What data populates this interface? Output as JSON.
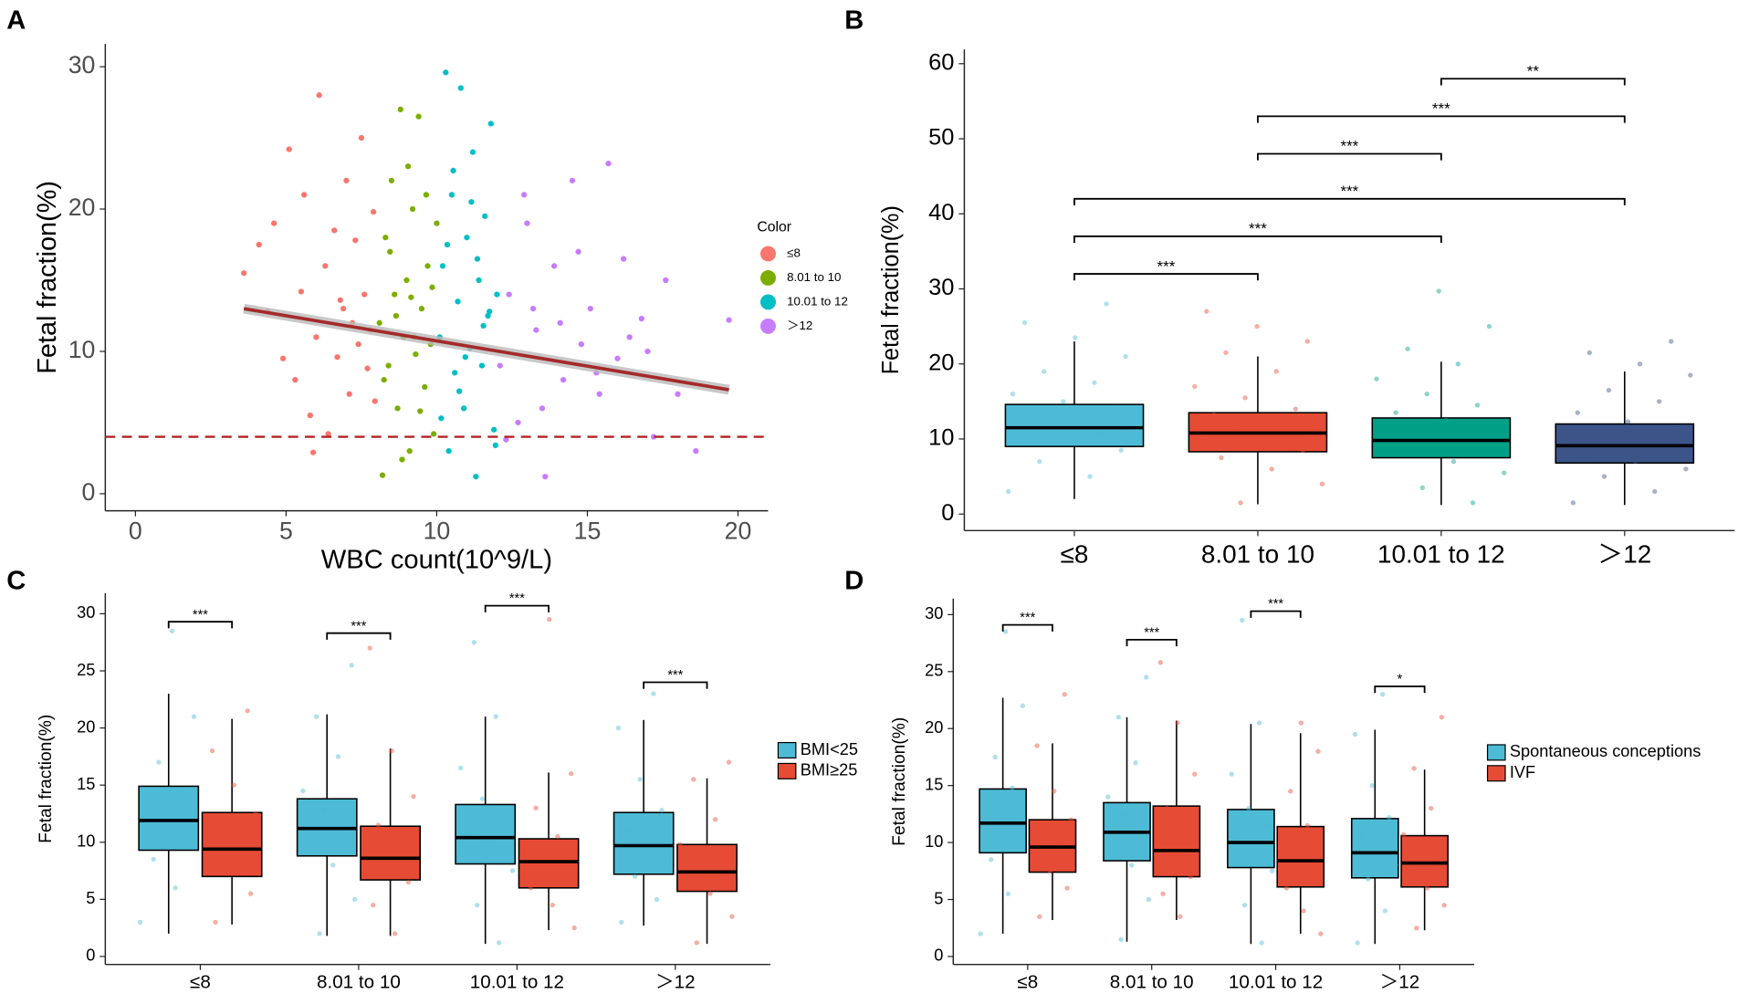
{
  "chart_data": [
    {
      "type": "scatter",
      "panel_label": "A",
      "xlabel": "WBC count(10^9/L)",
      "ylabel": "Fetal fraction(%)",
      "legend_title": "Color",
      "xlim": [
        -1,
        21
      ],
      "xticks": [
        0,
        5,
        10,
        15,
        20
      ],
      "ylim": [
        -1.2,
        31.6
      ],
      "yticks": [
        0,
        10,
        20,
        30
      ],
      "series": [
        {
          "name": "≤8",
          "color": "#F8766D",
          "x": [
            3.6,
            4.1,
            4.4,
            4.6,
            4.9,
            5.1,
            5.3,
            5.5,
            5.6,
            5.8,
            6.0,
            6.1,
            6.3,
            6.4,
            6.6,
            6.7,
            6.9,
            7.0,
            7.1,
            7.2,
            7.3,
            7.4,
            7.5,
            7.6,
            7.7,
            7.8,
            7.9,
            7.95,
            5.9,
            6.8
          ],
          "y": [
            15.5,
            17.5,
            12.8,
            19,
            9.5,
            24.2,
            8,
            14.2,
            21,
            5.5,
            11,
            28,
            16,
            4.2,
            18.5,
            9.6,
            13,
            22,
            7,
            12,
            17.8,
            10.5,
            25,
            14,
            8.8,
            11.5,
            19.8,
            6.5,
            2.9,
            13.6
          ]
        },
        {
          "name": "8.01 to 10",
          "color": "#7CAE00",
          "x": [
            8.1,
            8.2,
            8.3,
            8.4,
            8.5,
            8.6,
            8.7,
            8.8,
            8.9,
            9.0,
            9.1,
            9.2,
            9.3,
            9.4,
            9.5,
            9.6,
            9.7,
            9.8,
            9.9,
            10.0,
            8.25,
            8.65,
            9.05,
            9.45,
            9.85,
            8.45,
            9.25,
            9.65,
            8.85,
            9.15
          ],
          "y": [
            12,
            1.3,
            18,
            9,
            22,
            14,
            6,
            27,
            11,
            15,
            3,
            20,
            9.8,
            26.5,
            13,
            7.5,
            16,
            10.5,
            4.2,
            19,
            8,
            12.5,
            23,
            5.8,
            14.5,
            17,
            11,
            21,
            2.4,
            13.8
          ]
        },
        {
          "name": "10.01 to 12",
          "color": "#00BFC4",
          "x": [
            10.1,
            10.2,
            10.3,
            10.4,
            10.5,
            10.6,
            10.7,
            10.8,
            10.9,
            11.0,
            11.1,
            11.2,
            11.3,
            11.4,
            11.5,
            11.6,
            11.7,
            11.8,
            11.9,
            12.0,
            10.35,
            10.75,
            11.15,
            11.55,
            11.95,
            10.55,
            10.95,
            11.35,
            11.75,
            10.15
          ],
          "y": [
            11,
            16,
            29.6,
            3,
            21,
            8.5,
            13.5,
            28.5,
            6,
            18,
            10.2,
            24,
            1.2,
            15,
            9,
            19.5,
            12.5,
            26,
            4.5,
            14,
            17.5,
            7.2,
            20.5,
            11.8,
            3.4,
            22.7,
            9.6,
            16.5,
            12.8,
            5.3
          ]
        },
        {
          "name": "＞12",
          "color": "#C77CFF",
          "x": [
            12.1,
            12.4,
            12.7,
            13.0,
            13.3,
            13.6,
            13.9,
            14.2,
            14.5,
            14.8,
            15.1,
            15.4,
            15.7,
            16.0,
            16.4,
            16.8,
            17.2,
            17.6,
            18.0,
            18.6,
            19.7,
            12.9,
            13.5,
            14.1,
            14.7,
            15.3,
            16.2,
            17.0,
            12.3,
            13.2
          ],
          "y": [
            9,
            14,
            5,
            19,
            11.5,
            1.2,
            16,
            8,
            22,
            10.5,
            13,
            7,
            23.2,
            9.5,
            11,
            12.3,
            4,
            15,
            7,
            3,
            12.2,
            21,
            6,
            12,
            17,
            8.5,
            16.5,
            10,
            3.8,
            13
          ]
        }
      ],
      "regression": {
        "x": [
          3.6,
          19.7
        ],
        "y": [
          13.0,
          7.3
        ],
        "color": "#A52A2A"
      },
      "hline": {
        "y": 4,
        "color": "#B22222"
      }
    },
    {
      "type": "box",
      "panel_label": "B",
      "ylabel": "Fetal fraction(%)",
      "ylim": [
        -2.2,
        61.9
      ],
      "yticks": [
        0,
        10,
        20,
        30,
        40,
        50,
        60
      ],
      "categories": [
        "≤8",
        "8.01 to 10",
        "10.01 to 12",
        "＞12"
      ],
      "series": [
        {
          "colors": [
            "#4DBBD5",
            "#E64B35",
            "#00A087",
            "#3C5488"
          ],
          "boxes": [
            {
              "low": 2,
              "q1": 9,
              "median": 11.5,
              "q3": 14.6,
              "high": 23,
              "points": [
                3,
                5,
                7,
                8.5,
                9.5,
                10,
                10.8,
                11.5,
                12,
                12.6,
                13.3,
                14,
                15,
                16,
                17.5,
                19,
                21,
                23.5,
                25.5,
                28
              ]
            },
            {
              "low": 1.3,
              "q1": 8.3,
              "median": 10.8,
              "q3": 13.5,
              "high": 21,
              "points": [
                1.5,
                4,
                6,
                7.5,
                8.5,
                9.2,
                10,
                10.6,
                11.2,
                11.8,
                12.5,
                13.2,
                14,
                15.5,
                17,
                19,
                21.5,
                23,
                25,
                27
              ]
            },
            {
              "low": 1.2,
              "q1": 7.5,
              "median": 9.8,
              "q3": 12.8,
              "high": 20.3,
              "points": [
                1.5,
                3.5,
                5.5,
                7,
                8,
                8.8,
                9.5,
                10,
                10.6,
                11.2,
                11.8,
                12.5,
                13.5,
                14.5,
                16,
                18,
                20,
                22,
                25,
                29.7
              ]
            },
            {
              "low": 1.2,
              "q1": 6.8,
              "median": 9.1,
              "q3": 12,
              "high": 19,
              "points": [
                1.5,
                3,
                5,
                6,
                7,
                7.8,
                8.5,
                9,
                9.6,
                10.2,
                10.8,
                11.5,
                12.3,
                13.5,
                15,
                16.5,
                18.5,
                20,
                21.5,
                23
              ]
            }
          ]
        }
      ],
      "comparisons": [
        {
          "from": 0,
          "to": 1,
          "y": 32,
          "label": "***"
        },
        {
          "from": 0,
          "to": 2,
          "y": 37,
          "label": "***"
        },
        {
          "from": 0,
          "to": 3,
          "y": 42,
          "label": "***"
        },
        {
          "from": 1,
          "to": 2,
          "y": 48,
          "label": "***"
        },
        {
          "from": 1,
          "to": 3,
          "y": 53,
          "label": "***"
        },
        {
          "from": 2,
          "to": 3,
          "y": 58,
          "label": "**"
        }
      ]
    },
    {
      "type": "box",
      "panel_label": "C",
      "ylabel": "Fetal fraction(%)",
      "ylim": [
        -0.7,
        31.8
      ],
      "yticks": [
        0,
        5,
        10,
        15,
        20,
        25,
        30
      ],
      "categories": [
        "≤8",
        "8.01 to 10",
        "10.01 to 12",
        "＞12"
      ],
      "series": [
        {
          "name": "BMI<25",
          "color": "#4DBBD5",
          "boxes": [
            {
              "low": 2,
              "q1": 9.3,
              "median": 11.9,
              "q3": 14.9,
              "high": 23,
              "points": [
                3,
                6,
                8.5,
                10.5,
                11.8,
                13,
                14.5,
                17,
                21,
                28.5
              ]
            },
            {
              "low": 1.8,
              "q1": 8.8,
              "median": 11.2,
              "q3": 13.8,
              "high": 21.2,
              "points": [
                2,
                5,
                8,
                10,
                11.5,
                12.8,
                14.5,
                17.5,
                21,
                25.5
              ]
            },
            {
              "low": 1.1,
              "q1": 8.1,
              "median": 10.4,
              "q3": 13.3,
              "high": 21,
              "points": [
                1.2,
                4.5,
                7.5,
                9.5,
                10.6,
                12,
                13.8,
                16.5,
                21,
                27.5
              ]
            },
            {
              "low": 2.7,
              "q1": 7.2,
              "median": 9.7,
              "q3": 12.6,
              "high": 20.7,
              "points": [
                3,
                5,
                7,
                8.6,
                9.8,
                11,
                12.8,
                15.5,
                20,
                23
              ]
            }
          ]
        },
        {
          "name": "BMI≥25",
          "color": "#E64B35",
          "boxes": [
            {
              "low": 2.8,
              "q1": 7,
              "median": 9.4,
              "q3": 12.6,
              "high": 20.8,
              "points": [
                3,
                5.5,
                7.5,
                8.8,
                9.6,
                10.8,
                12.5,
                15,
                18,
                21.5
              ]
            },
            {
              "low": 1.8,
              "q1": 6.7,
              "median": 8.6,
              "q3": 11.4,
              "high": 18.2,
              "points": [
                2,
                4.5,
                6.5,
                7.8,
                8.8,
                9.8,
                11.5,
                14,
                18,
                27
              ]
            },
            {
              "low": 2.3,
              "q1": 6,
              "median": 8.3,
              "q3": 10.3,
              "high": 16.1,
              "points": [
                2.5,
                4.5,
                6,
                7.3,
                8.3,
                9.3,
                10.5,
                13,
                16,
                29.5
              ]
            },
            {
              "low": 1.1,
              "q1": 5.7,
              "median": 7.4,
              "q3": 9.8,
              "high": 15.6,
              "points": [
                1.2,
                3.5,
                5.5,
                6.6,
                7.4,
                8.3,
                9.8,
                12,
                15.5,
                17
              ]
            }
          ]
        }
      ],
      "comparisons": [
        {
          "category": 0,
          "y": 29.3,
          "label": "***"
        },
        {
          "category": 1,
          "y": 28.3,
          "label": "***"
        },
        {
          "category": 2,
          "y": 30.7,
          "label": "***"
        },
        {
          "category": 3,
          "y": 24,
          "label": "***"
        }
      ]
    },
    {
      "type": "box",
      "panel_label": "D",
      "ylabel": "Fetal fraction(%)",
      "ylim": [
        -0.7,
        31.4
      ],
      "yticks": [
        0,
        5,
        10,
        15,
        20,
        25,
        30
      ],
      "categories": [
        "≤8",
        "8.01 to 10",
        "10.01 to 12",
        "＞12"
      ],
      "series": [
        {
          "name": "Spontaneous conceptions",
          "color": "#4DBBD5",
          "boxes": [
            {
              "low": 2,
              "q1": 9.1,
              "median": 11.7,
              "q3": 14.7,
              "high": 22.7,
              "points": [
                2,
                5.5,
                8.5,
                10.5,
                11.8,
                13,
                14.8,
                17.5,
                22,
                28.5
              ]
            },
            {
              "low": 1.3,
              "q1": 8.4,
              "median": 10.9,
              "q3": 13.5,
              "high": 21,
              "points": [
                1.5,
                5,
                8,
                10,
                11,
                12.5,
                14,
                17,
                21,
                24.5
              ]
            },
            {
              "low": 1.1,
              "q1": 7.8,
              "median": 10,
              "q3": 12.9,
              "high": 20.4,
              "points": [
                1.2,
                4.5,
                7.5,
                9,
                10.2,
                11.5,
                13,
                16,
                20.5,
                29.5
              ]
            },
            {
              "low": 1.1,
              "q1": 6.9,
              "median": 9.1,
              "q3": 12.1,
              "high": 19.9,
              "points": [
                1.2,
                4,
                6.8,
                8,
                9.2,
                10.5,
                12.2,
                15,
                19.5,
                23
              ]
            }
          ]
        },
        {
          "name": "IVF",
          "color": "#E64B35",
          "boxes": [
            {
              "low": 3.2,
              "q1": 7.4,
              "median": 9.6,
              "q3": 12,
              "high": 18.7,
              "points": [
                3.5,
                6,
                7.5,
                8.8,
                9.7,
                10.6,
                12,
                14.5,
                18.5,
                23
              ]
            },
            {
              "low": 3.2,
              "q1": 7,
              "median": 9.3,
              "q3": 13.2,
              "high": 20.7,
              "points": [
                3.5,
                5.5,
                7,
                8.3,
                9.4,
                10.5,
                13,
                16,
                20.5,
                25.8
              ]
            },
            {
              "low": 2,
              "q1": 6.1,
              "median": 8.4,
              "q3": 11.4,
              "high": 19.6,
              "points": [
                2,
                4,
                6,
                7.3,
                8.5,
                9.5,
                11.5,
                14.5,
                18,
                20.5
              ]
            },
            {
              "low": 2.3,
              "q1": 6.1,
              "median": 8.2,
              "q3": 10.6,
              "high": 16.4,
              "points": [
                2.5,
                4.5,
                6,
                7.3,
                8.2,
                9.2,
                10.7,
                13,
                16.5,
                21
              ]
            }
          ]
        }
      ],
      "comparisons": [
        {
          "category": 0,
          "y": 29.1,
          "label": "***"
        },
        {
          "category": 1,
          "y": 27.8,
          "label": "***"
        },
        {
          "category": 2,
          "y": 30.3,
          "label": "***"
        },
        {
          "category": 3,
          "y": 23.7,
          "label": "*"
        }
      ]
    }
  ]
}
